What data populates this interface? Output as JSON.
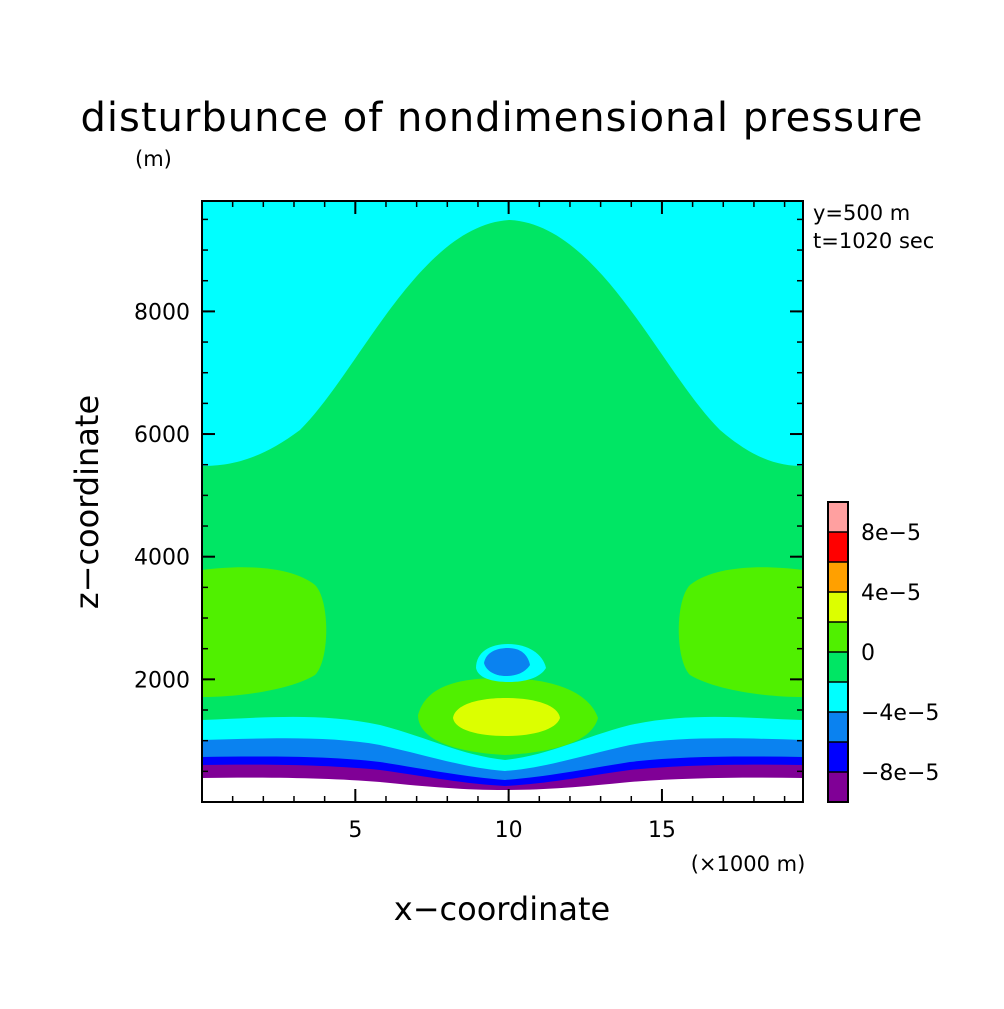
{
  "chart_data": {
    "type": "heatmap",
    "title": "disturbunce of nondimensional pressure",
    "ylabel_unit": "(m)",
    "xlabel": "x−coordinate",
    "ylabel": "z−coordinate",
    "xunit": "(×1000 m)",
    "annotations": [
      "y=500 m",
      "t=1020 sec"
    ],
    "xlim": [
      0,
      19.6
    ],
    "ylim": [
      0,
      9800
    ],
    "xticks": [
      5,
      10,
      15
    ],
    "xtick_labels": [
      "5",
      "10",
      "15"
    ],
    "yticks": [
      2000,
      4000,
      6000,
      8000
    ],
    "ytick_labels": [
      "2000",
      "4000",
      "6000",
      "8000"
    ],
    "colorbar": {
      "levels": [
        -0.0001,
        -8e-05,
        -6e-05,
        -4e-05,
        -2e-05,
        0,
        2e-05,
        4e-05,
        6e-05,
        8e-05,
        0.0001
      ],
      "colors": [
        "#800096",
        "#0000ff",
        "#0a82f0",
        "#00ffff",
        "#00e664",
        "#50f000",
        "#dcff00",
        "#ffa000",
        "#ff0000",
        "#ffa0a0"
      ],
      "tick_values": [
        -8e-05,
        -4e-05,
        0,
        4e-05,
        8e-05
      ],
      "tick_labels": [
        "−8e−5",
        "−4e−5",
        "0",
        "4e−5",
        "8e−5"
      ]
    },
    "regions": [
      {
        "name": "background",
        "level": "-2e-5..0"
      },
      {
        "name": "upper-left and upper-right",
        "level": "-4e-5..-2e-5",
        "z_range": [
          5600,
          9800
        ]
      },
      {
        "name": "side lobes",
        "level": "0..2e-5",
        "z_range": [
          1800,
          3900
        ]
      },
      {
        "name": "central lobe",
        "level": "0..2e-5",
        "x_center": 10,
        "z_range": [
          600,
          2000
        ]
      },
      {
        "name": "central maximum",
        "level": "2e-5..4e-5",
        "x_center": 10,
        "z_range": [
          1200,
          1700
        ]
      },
      {
        "name": "small negative cell",
        "level": "-6e-5..-4e-5",
        "x_center": 10,
        "z_range": [
          2100,
          2600
        ]
      },
      {
        "name": "bottom layers",
        "level": "-1e-4..-4e-5",
        "z_range": [
          200,
          1100
        ]
      }
    ]
  }
}
